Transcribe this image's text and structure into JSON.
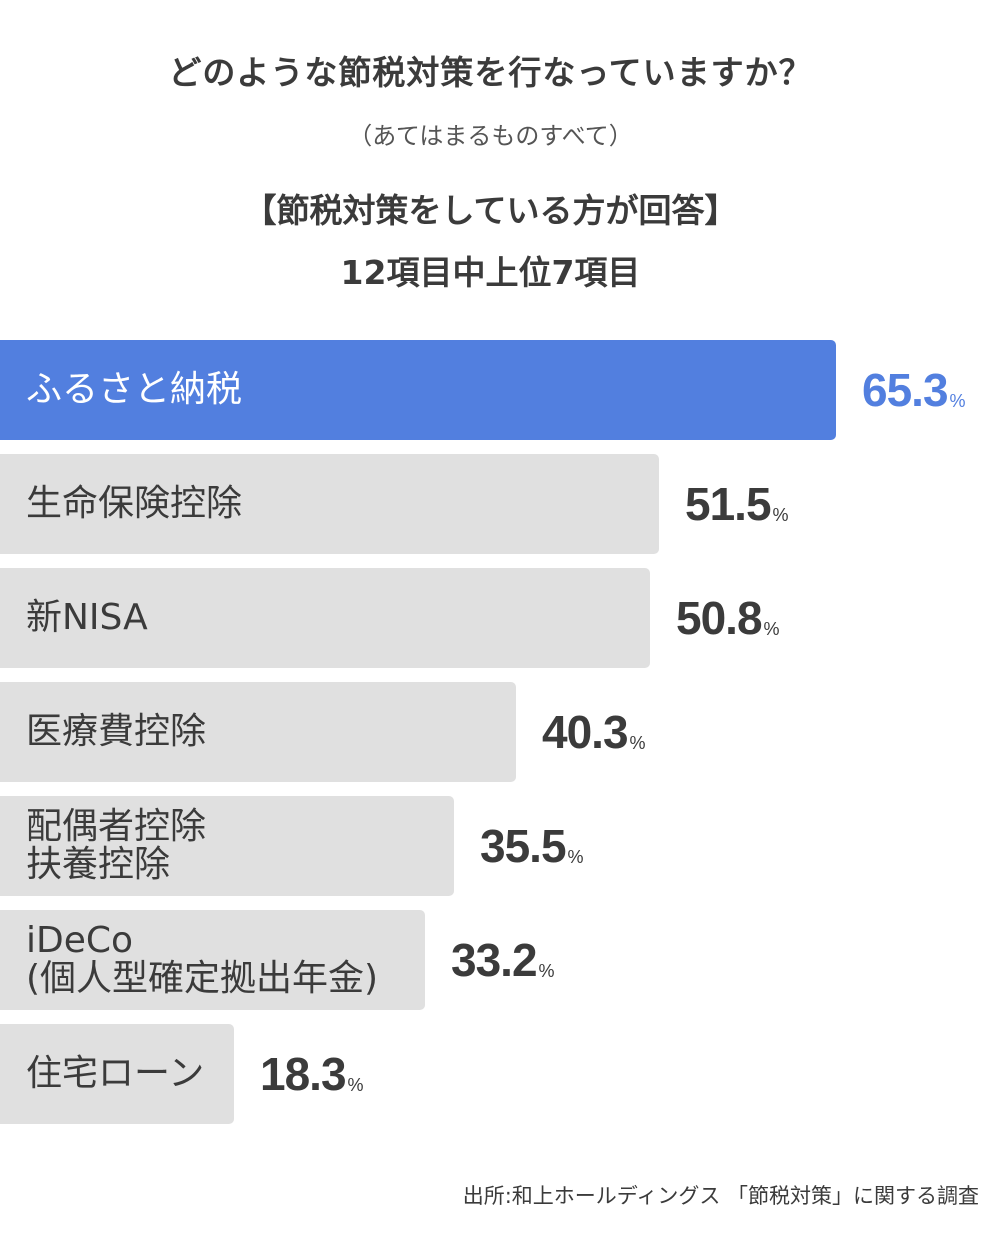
{
  "header": {
    "title": "どのような節税対策を行なっていますか？",
    "subtitle": "（あてはまるものすべて）",
    "note": "【節税対策をしている方が回答】",
    "scope": "12項目中上位7項目"
  },
  "colors": {
    "highlight": "#527fdf",
    "bar": "#e0e0e0",
    "text": "#3b3b3b"
  },
  "chart_data": {
    "type": "bar",
    "orientation": "horizontal",
    "unit": "%",
    "categories": [
      [
        "ふるさと納税"
      ],
      [
        "生命保険控除"
      ],
      [
        "新NISA"
      ],
      [
        "医療費控除"
      ],
      [
        "配偶者控除",
        "扶養控除"
      ],
      [
        "iDeCo",
        "(個人型確定拠出年金)"
      ],
      [
        "住宅ローン"
      ]
    ],
    "values": [
      65.3,
      51.5,
      50.8,
      40.3,
      35.5,
      33.2,
      18.3
    ],
    "value_labels": [
      "65.3",
      "51.5",
      "50.8",
      "40.3",
      "35.5",
      "33.2",
      "18.3"
    ],
    "highlight_index": 0
  },
  "footer": {
    "source": "出所:和上ホールディングス 「節税対策」に関する調査"
  }
}
